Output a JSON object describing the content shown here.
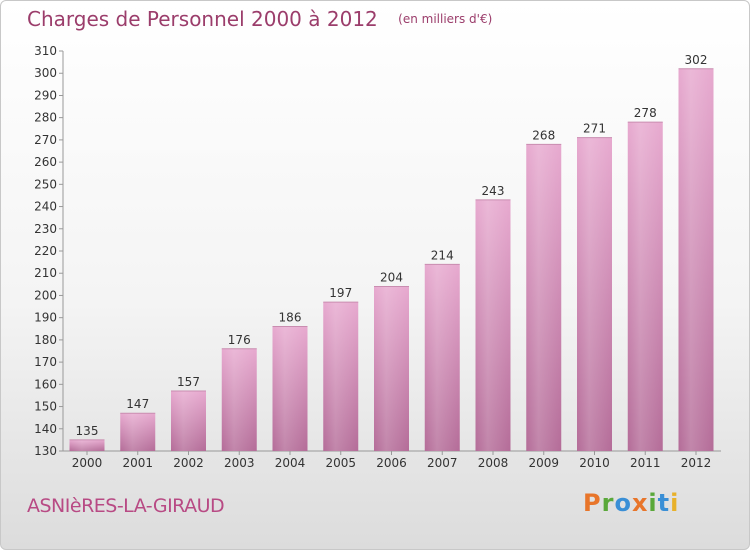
{
  "chart_data": {
    "type": "bar",
    "title": "Charges de Personnel 2000 à 2012",
    "subtitle": "(en milliers d'€)",
    "categories": [
      "2000",
      "2001",
      "2002",
      "2003",
      "2004",
      "2005",
      "2006",
      "2007",
      "2008",
      "2009",
      "2010",
      "2011",
      "2012"
    ],
    "values": [
      135,
      147,
      157,
      176,
      186,
      197,
      204,
      214,
      243,
      268,
      271,
      278,
      302
    ],
    "ylim": [
      130,
      310
    ],
    "yticks": [
      130,
      140,
      150,
      160,
      170,
      180,
      190,
      200,
      210,
      220,
      230,
      240,
      250,
      260,
      270,
      280,
      290,
      300,
      310
    ],
    "xlabel": "",
    "ylabel": "",
    "grid": false,
    "bar_color": "#d989b8"
  },
  "footer": {
    "place": "ASNIèRES-LA-GIRAUD",
    "logo": "Proxiti",
    "logo_colors": [
      "#e8752a",
      "#5aa83a",
      "#3a8fd6",
      "#e8752a",
      "#5aa83a",
      "#3a8fd6",
      "#e8b12a"
    ]
  },
  "colors": {
    "title": "#9b3d6b",
    "place": "#b84a84"
  }
}
